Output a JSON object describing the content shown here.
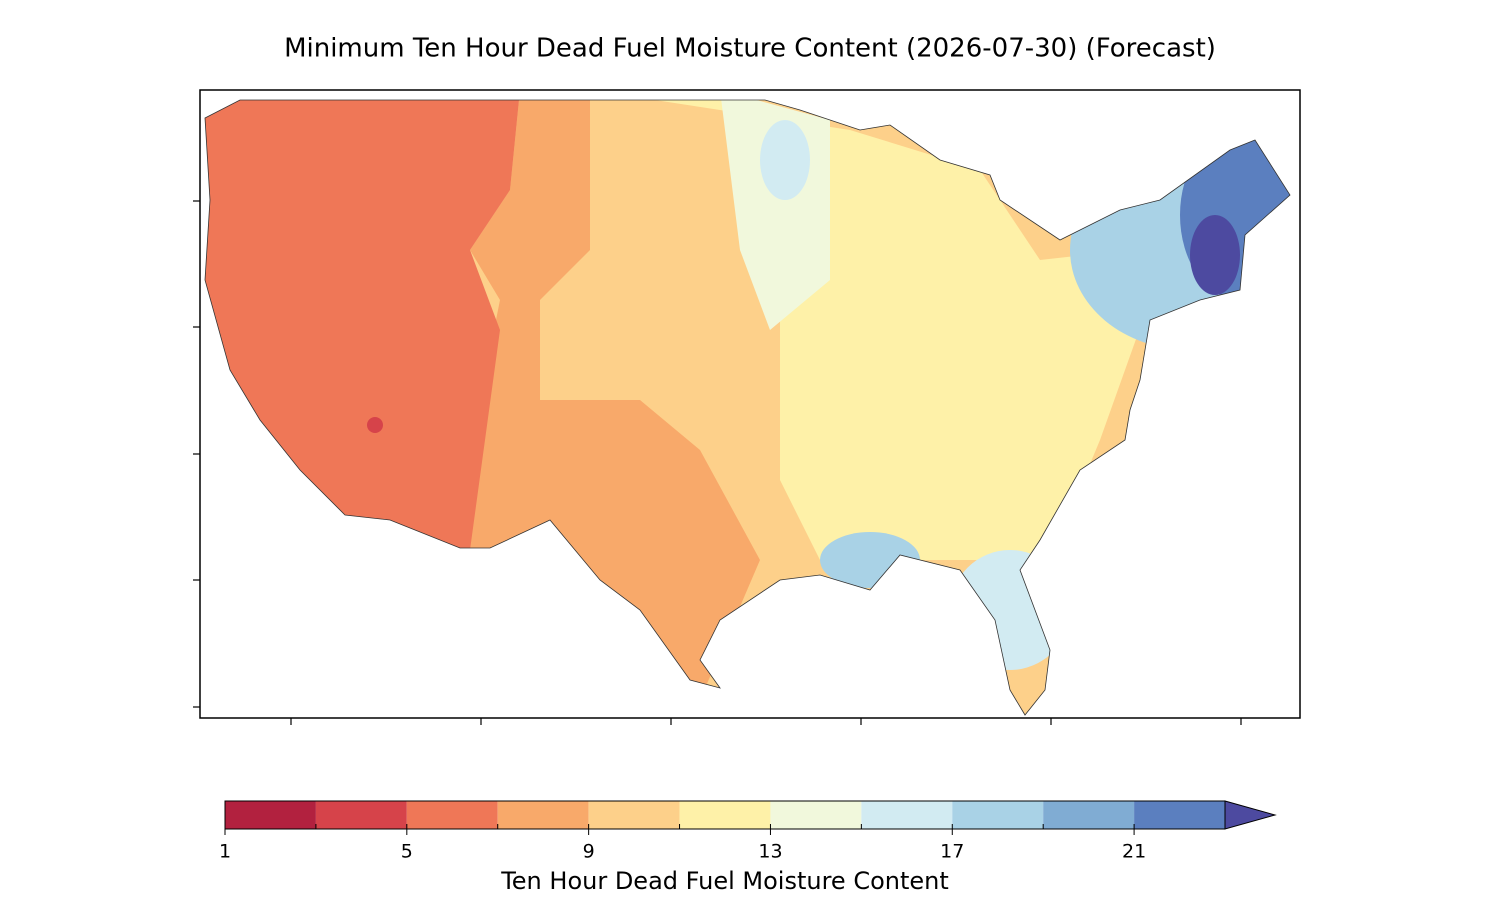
{
  "title": "Minimum Ten Hour Dead Fuel Moisture Content (2026-07-30) (Forecast)",
  "colorbar": {
    "label": "Ten Hour Dead Fuel Moisture Content",
    "boundaries": [
      1,
      3,
      5,
      7,
      9,
      11,
      13,
      15,
      17,
      19,
      21,
      23
    ],
    "colors": [
      "#b2213f",
      "#d6434a",
      "#ef7757",
      "#f8a96a",
      "#fdd08a",
      "#fef1a8",
      "#f1f8dc",
      "#d2ebf2",
      "#a9d2e6",
      "#80acd3",
      "#5b7fbf"
    ],
    "extend": "max",
    "extend_color": "#4d4aa0",
    "ticks": [
      1,
      5,
      9,
      13,
      17,
      21
    ]
  }
}
